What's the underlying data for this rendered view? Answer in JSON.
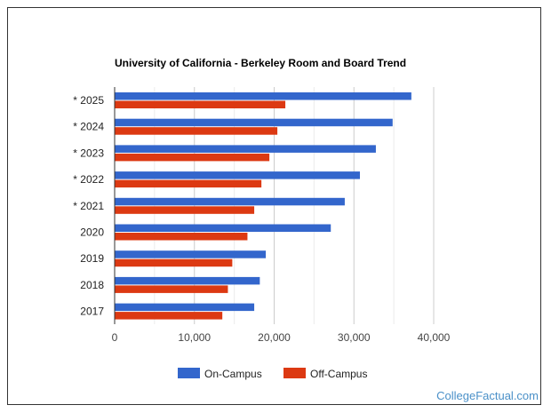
{
  "chart_data": {
    "type": "bar",
    "orientation": "horizontal",
    "title": "University of California - Berkeley Room and Board Trend",
    "categories": [
      "* 2025",
      "* 2024",
      "* 2023",
      "* 2022",
      "* 2021",
      "2020",
      "2019",
      "2018",
      "2017"
    ],
    "series": [
      {
        "name": "On-Campus",
        "color": "#3366cc",
        "values": [
          37200,
          34850,
          32750,
          30750,
          28850,
          27100,
          18950,
          18200,
          17500
        ]
      },
      {
        "name": "Off-Campus",
        "color": "#dc3912",
        "values": [
          21400,
          20400,
          19400,
          18400,
          17500,
          16650,
          14750,
          14200,
          13500
        ]
      }
    ],
    "xlim": [
      0,
      40000
    ],
    "xticks": [
      "0",
      "10,000",
      "20,000",
      "30,000",
      "40,000"
    ],
    "xtick_values": [
      0,
      10000,
      20000,
      30000,
      40000
    ],
    "grid": true,
    "legend": "bottom"
  },
  "watermark": "CollegeFactual.com"
}
